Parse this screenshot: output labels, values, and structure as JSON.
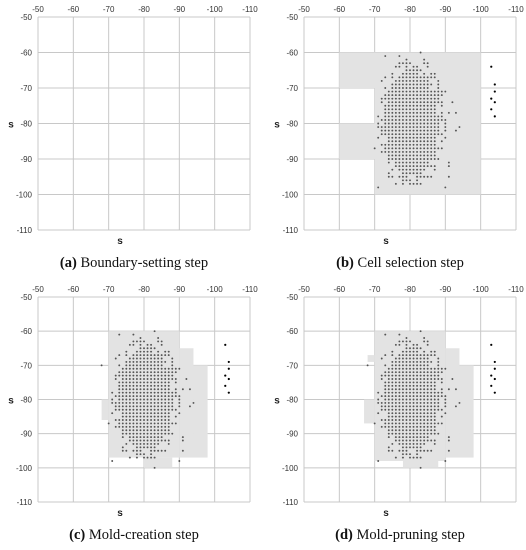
{
  "figure": {
    "panels": [
      {
        "letter": "(a)",
        "title": "Boundary-setting step"
      },
      {
        "letter": "(b)",
        "title": "Cell selection step"
      },
      {
        "letter": "(c)",
        "title": "Mold-creation step"
      },
      {
        "letter": "(d)",
        "title": "Mold-pruning step"
      }
    ]
  },
  "colors": {
    "grid": "#c8c8c8",
    "region": "#e3e3e3",
    "point": "#555555",
    "outlier": "#000000"
  },
  "chart_data": [
    {
      "type": "scatter",
      "panel": "a",
      "xlabel": "s",
      "ylabel": "s",
      "xlim": [
        -50,
        -110
      ],
      "ylim": [
        -110,
        -50
      ],
      "xticks": [
        -50,
        -60,
        -70,
        -80,
        -90,
        -100,
        -110
      ],
      "yticks": [
        -50,
        -60,
        -70,
        -80,
        -90,
        -100,
        -110
      ],
      "grid": true,
      "regions": [],
      "cluster": null,
      "outliers": []
    },
    {
      "type": "scatter",
      "panel": "b",
      "xlabel": "s",
      "ylabel": "s",
      "xlim": [
        -50,
        -110
      ],
      "ylim": [
        -110,
        -50
      ],
      "xticks": [
        -50,
        -60,
        -70,
        -80,
        -90,
        -100,
        -110
      ],
      "yticks": [
        -50,
        -60,
        -70,
        -80,
        -90,
        -100,
        -110
      ],
      "grid": true,
      "regions": [
        [
          -60,
          -100,
          -60,
          -70
        ],
        [
          -60,
          -100,
          -80,
          -90
        ],
        [
          -70,
          -100,
          -70,
          -80
        ],
        [
          -70,
          -100,
          -90,
          -100
        ]
      ],
      "cluster": {
        "x": [
          -69,
          -101
        ],
        "y": [
          -59,
          -99
        ],
        "step": 1
      },
      "outliers": [
        [
          -103,
          -64
        ],
        [
          -104,
          -69
        ],
        [
          -104,
          -71
        ],
        [
          -103,
          -73
        ],
        [
          -104,
          -74
        ],
        [
          -103,
          -76
        ],
        [
          -104,
          -78
        ]
      ]
    },
    {
      "type": "scatter",
      "panel": "c",
      "xlabel": "s",
      "ylabel": "s",
      "xlim": [
        -50,
        -110
      ],
      "ylim": [
        -110,
        -50
      ],
      "xticks": [
        -50,
        -60,
        -70,
        -80,
        -90,
        -100,
        -110
      ],
      "yticks": [
        -50,
        -60,
        -70,
        -80,
        -90,
        -100,
        -110
      ],
      "grid": true,
      "regions": [
        [
          -70,
          -90,
          -60,
          -97
        ],
        [
          -90,
          -94,
          -65,
          -97
        ],
        [
          -94,
          -98,
          -70,
          -97
        ],
        [
          -68,
          -70,
          -80,
          -86
        ],
        [
          -80,
          -88,
          -97,
          -100
        ]
      ],
      "cluster": {
        "x": [
          -67,
          -101
        ],
        "y": [
          -59,
          -100
        ],
        "step": 1
      },
      "outliers": [
        [
          -103,
          -64
        ],
        [
          -104,
          -69
        ],
        [
          -104,
          -71
        ],
        [
          -103,
          -73
        ],
        [
          -104,
          -74
        ],
        [
          -103,
          -76
        ],
        [
          -104,
          -78
        ]
      ]
    },
    {
      "type": "scatter",
      "panel": "d",
      "xlabel": "s",
      "ylabel": "s",
      "xlim": [
        -50,
        -110
      ],
      "ylim": [
        -110,
        -50
      ],
      "xticks": [
        -50,
        -60,
        -70,
        -80,
        -90,
        -100,
        -110
      ],
      "yticks": [
        -50,
        -60,
        -70,
        -80,
        -90,
        -100,
        -110
      ],
      "grid": true,
      "regions": [
        [
          -70,
          -90,
          -60,
          -98
        ],
        [
          -90,
          -94,
          -65,
          -97
        ],
        [
          -94,
          -98,
          -70,
          -97
        ],
        [
          -68,
          -70,
          -67,
          -69
        ],
        [
          -67,
          -70,
          -80,
          -87
        ],
        [
          -78,
          -88,
          -97,
          -100
        ]
      ],
      "cluster": {
        "x": [
          -68,
          -101
        ],
        "y": [
          -59,
          -100
        ],
        "step": 1
      },
      "outliers": [
        [
          -103,
          -64
        ],
        [
          -104,
          -69
        ],
        [
          -104,
          -71
        ],
        [
          -103,
          -73
        ],
        [
          -104,
          -74
        ],
        [
          -103,
          -76
        ],
        [
          -104,
          -78
        ]
      ]
    }
  ]
}
